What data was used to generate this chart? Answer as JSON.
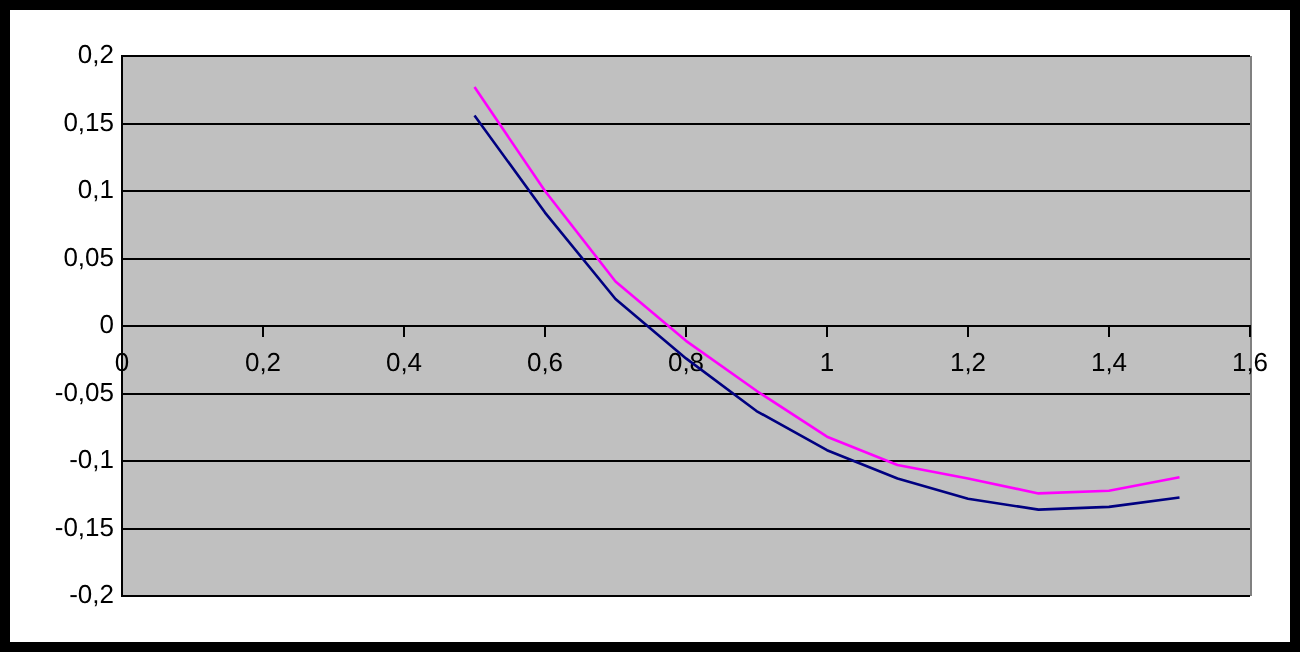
{
  "chart_data": {
    "type": "line",
    "x": [
      0.5,
      0.6,
      0.7,
      0.8,
      0.9,
      1,
      1.1,
      1.2,
      1.3,
      1.4,
      1.5
    ],
    "series": [
      {
        "color": "#ff00ff",
        "values": [
          0.177,
          0.1,
          0.033,
          -0.011,
          -0.048,
          -0.082,
          -0.103,
          -0.113,
          -0.124,
          -0.122,
          -0.112
        ]
      },
      {
        "color": "#000080",
        "values": [
          0.156,
          0.084,
          0.02,
          -0.024,
          -0.063,
          -0.092,
          -0.113,
          -0.128,
          -0.136,
          -0.134,
          -0.127
        ]
      }
    ],
    "xlim": [
      0,
      1.6
    ],
    "xticks": [
      0,
      {
        "value": 0.2,
        "label": "0,2"
      },
      {
        "value": 0.4,
        "label": "0,4"
      },
      {
        "value": 0.6,
        "label": "0,6"
      },
      {
        "value": 0.8,
        "label": "0,8"
      },
      1,
      {
        "value": 1.2,
        "label": "1,2"
      },
      {
        "value": 1.4,
        "label": "1,4"
      },
      {
        "value": 1.6,
        "label": "1,6"
      }
    ],
    "ylim": [
      -0.2,
      0.2
    ],
    "yticks": [
      {
        "value": -0.2,
        "label": "-0,2"
      },
      {
        "value": -0.15,
        "label": "-0,15"
      },
      {
        "value": -0.1,
        "label": "-0,1"
      },
      {
        "value": -0.05,
        "label": "-0,05"
      },
      0,
      {
        "value": 0.05,
        "label": "0,05"
      },
      {
        "value": 0.1,
        "label": "0,1"
      },
      {
        "value": 0.15,
        "label": "0,15"
      },
      {
        "value": 0.2,
        "label": "0,2"
      }
    ],
    "grid": "y",
    "legend": false,
    "marker": "none",
    "line_style": "solid"
  }
}
